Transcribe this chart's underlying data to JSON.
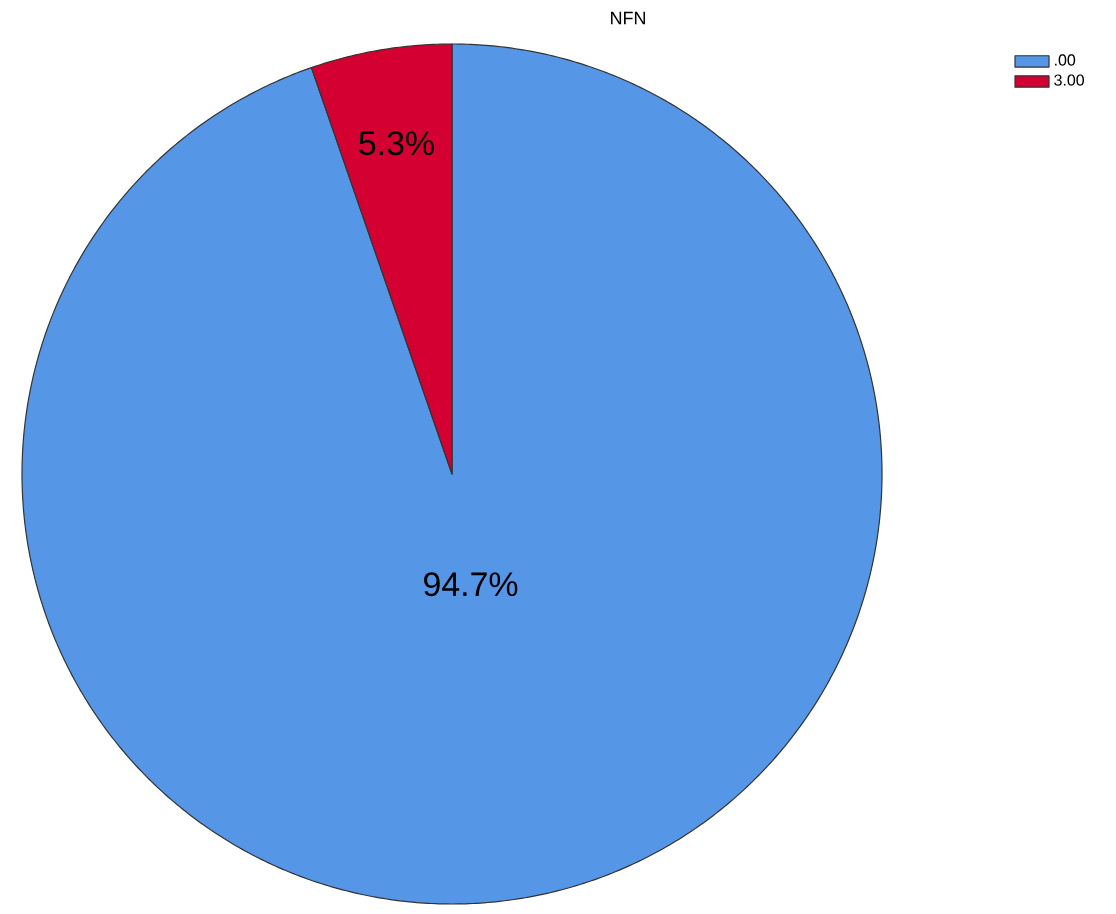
{
  "chart_data": {
    "type": "pie",
    "title": "NFN",
    "categories": [
      ".00",
      "3.00"
    ],
    "values": [
      94.7,
      5.3
    ],
    "value_labels": [
      "94.7%",
      "5.3%"
    ],
    "colors": [
      "#5596e6",
      "#d50032"
    ],
    "legend": "top right"
  }
}
